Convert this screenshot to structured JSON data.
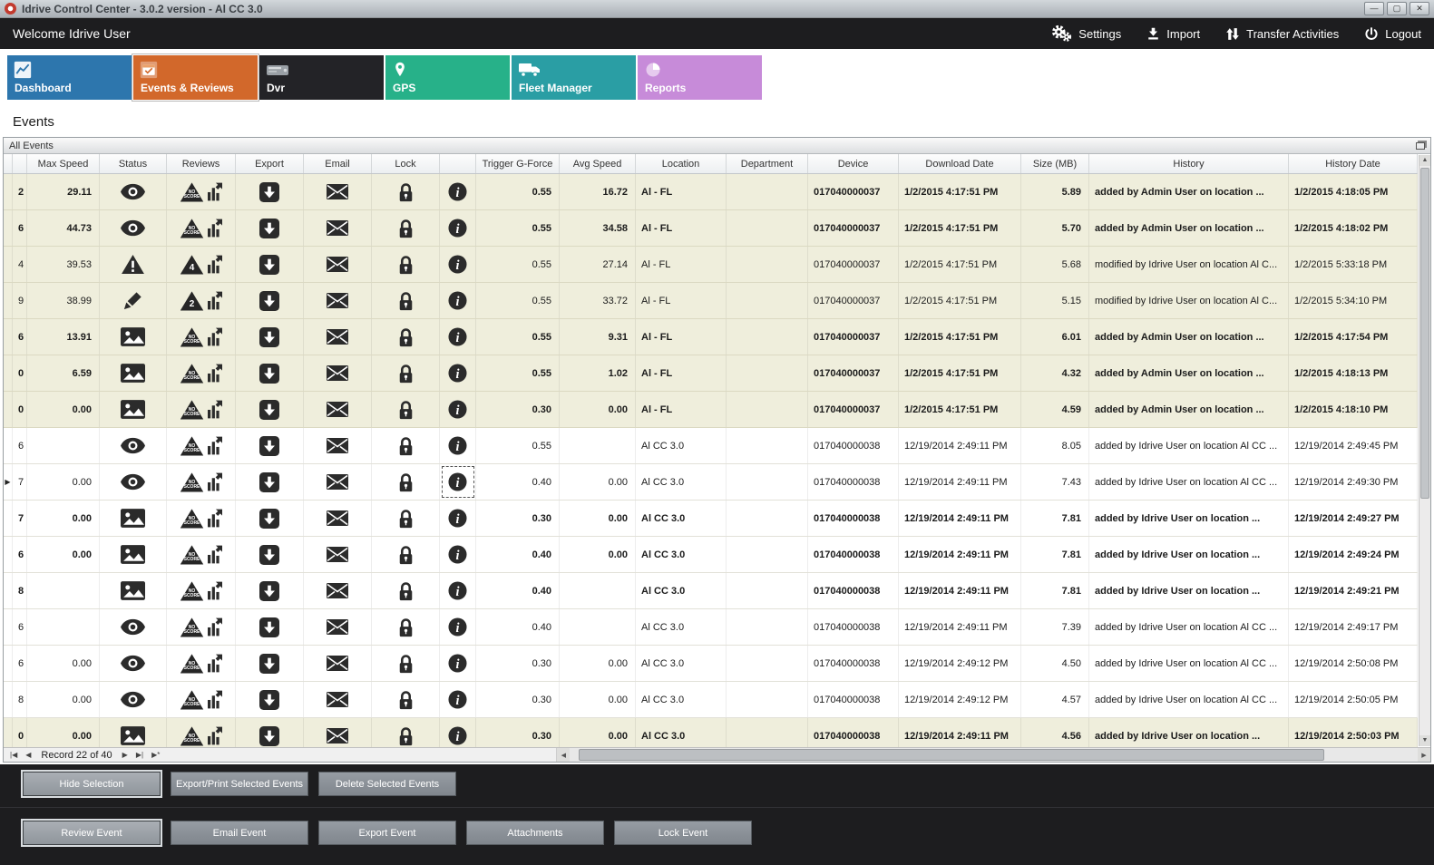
{
  "window": {
    "title": "Idrive Control Center - 3.0.2 version - Al CC 3.0",
    "controls": {
      "minimize": "—",
      "maximize": "▢",
      "close": "✕"
    }
  },
  "topbar": {
    "welcome": "Welcome Idrive User",
    "actions": [
      {
        "id": "settings",
        "label": "Settings"
      },
      {
        "id": "import",
        "label": "Import"
      },
      {
        "id": "transfer-activities",
        "label": "Transfer Activities"
      },
      {
        "id": "logout",
        "label": "Logout"
      }
    ]
  },
  "tabs": [
    {
      "label": "Dashboard",
      "color": "#2d76ad",
      "active": false
    },
    {
      "label": "Events & Reviews",
      "color": "#d2682b",
      "active": true
    },
    {
      "label": "Dvr",
      "color": "#232327",
      "active": false
    },
    {
      "label": "GPS",
      "color": "#27b189",
      "active": false
    },
    {
      "label": "Fleet Manager",
      "color": "#2a9ea4",
      "active": false
    },
    {
      "label": "Reports",
      "color": "#c78bd9",
      "active": false
    }
  ],
  "page": {
    "title": "Events"
  },
  "panel": {
    "title": "All Events"
  },
  "icons": {
    "first": "|◀",
    "prev": "◀",
    "next": "▶",
    "last": "▶|",
    "new": "▶*",
    "up": "▲",
    "down": "▼",
    "left": "◀",
    "right": "▶"
  },
  "table": {
    "headers": [
      "",
      "",
      "Max Speed",
      "Status",
      "Reviews",
      "Export",
      "Email",
      "Lock",
      "",
      "Trigger G-Force",
      "Avg Speed",
      "Location",
      "Department",
      "Device",
      "Download Date",
      "Size (MB)",
      "History",
      "History Date"
    ],
    "rows": [
      {
        "row_id": "2",
        "max_speed": "29.11",
        "status": "eye",
        "review": "NO SCORE",
        "trigger_g_force": "0.55",
        "avg_speed": "16.72",
        "location": "Al - FL",
        "department": "",
        "device": "017040000037",
        "download_date": "1/2/2015 4:17:51 PM",
        "size_mb": "5.89",
        "history": "added by Admin User on location ...",
        "history_date": "1/2/2015 4:18:05 PM",
        "bold": true,
        "highlight": true,
        "current": false
      },
      {
        "row_id": "6",
        "max_speed": "44.73",
        "status": "eye",
        "review": "NO SCORE",
        "trigger_g_force": "0.55",
        "avg_speed": "34.58",
        "location": "Al - FL",
        "department": "",
        "device": "017040000037",
        "download_date": "1/2/2015 4:17:51 PM",
        "size_mb": "5.70",
        "history": "added by Admin User on location ...",
        "history_date": "1/2/2015 4:18:02 PM",
        "bold": true,
        "highlight": true,
        "current": false
      },
      {
        "row_id": "4",
        "max_speed": "39.53",
        "status": "warning",
        "review": "4",
        "trigger_g_force": "0.55",
        "avg_speed": "27.14",
        "location": "Al - FL",
        "department": "",
        "device": "017040000037",
        "download_date": "1/2/2015 4:17:51 PM",
        "size_mb": "5.68",
        "history": "modified by Idrive User on location Al C...",
        "history_date": "1/2/2015 5:33:18 PM",
        "bold": false,
        "highlight": true,
        "current": false
      },
      {
        "row_id": "9",
        "max_speed": "38.99",
        "status": "pencil",
        "review": "2",
        "trigger_g_force": "0.55",
        "avg_speed": "33.72",
        "location": "Al - FL",
        "department": "",
        "device": "017040000037",
        "download_date": "1/2/2015 4:17:51 PM",
        "size_mb": "5.15",
        "history": "modified by Idrive User on location Al C...",
        "history_date": "1/2/2015 5:34:10 PM",
        "bold": false,
        "highlight": true,
        "current": false
      },
      {
        "row_id": "6",
        "max_speed": "13.91",
        "status": "image",
        "review": "NO SCORE",
        "trigger_g_force": "0.55",
        "avg_speed": "9.31",
        "location": "Al - FL",
        "department": "",
        "device": "017040000037",
        "download_date": "1/2/2015 4:17:51 PM",
        "size_mb": "6.01",
        "history": "added by Admin User on location ...",
        "history_date": "1/2/2015 4:17:54 PM",
        "bold": true,
        "highlight": true,
        "current": false
      },
      {
        "row_id": "0",
        "max_speed": "6.59",
        "status": "image",
        "review": "NO SCORE",
        "trigger_g_force": "0.55",
        "avg_speed": "1.02",
        "location": "Al - FL",
        "department": "",
        "device": "017040000037",
        "download_date": "1/2/2015 4:17:51 PM",
        "size_mb": "4.32",
        "history": "added by Admin User on location ...",
        "history_date": "1/2/2015 4:18:13 PM",
        "bold": true,
        "highlight": true,
        "current": false
      },
      {
        "row_id": "0",
        "max_speed": "0.00",
        "status": "image",
        "review": "NO SCORE",
        "trigger_g_force": "0.30",
        "avg_speed": "0.00",
        "location": "Al - FL",
        "department": "",
        "device": "017040000037",
        "download_date": "1/2/2015 4:17:51 PM",
        "size_mb": "4.59",
        "history": "added by Admin User on location ...",
        "history_date": "1/2/2015 4:18:10 PM",
        "bold": true,
        "highlight": true,
        "current": false
      },
      {
        "row_id": "6",
        "max_speed": "",
        "status": "eye",
        "review": "NO SCORE",
        "trigger_g_force": "0.55",
        "avg_speed": "",
        "location": "Al CC 3.0",
        "department": "",
        "device": "017040000038",
        "download_date": "12/19/2014 2:49:11 PM",
        "size_mb": "8.05",
        "history": "added by Idrive User on location Al CC ...",
        "history_date": "12/19/2014 2:49:45 PM",
        "bold": false,
        "highlight": false,
        "current": false
      },
      {
        "row_id": "7",
        "max_speed": "0.00",
        "status": "eye",
        "review": "NO SCORE",
        "trigger_g_force": "0.40",
        "avg_speed": "0.00",
        "location": "Al CC 3.0",
        "department": "",
        "device": "017040000038",
        "download_date": "12/19/2014 2:49:11 PM",
        "size_mb": "7.43",
        "history": "added by Idrive User on location Al CC ...",
        "history_date": "12/19/2014 2:49:30 PM",
        "bold": false,
        "highlight": false,
        "current": true
      },
      {
        "row_id": "7",
        "max_speed": "0.00",
        "status": "image",
        "review": "NO SCORE",
        "trigger_g_force": "0.30",
        "avg_speed": "0.00",
        "location": "Al CC 3.0",
        "department": "",
        "device": "017040000038",
        "download_date": "12/19/2014 2:49:11 PM",
        "size_mb": "7.81",
        "history": "added by Idrive User on location ...",
        "history_date": "12/19/2014 2:49:27 PM",
        "bold": true,
        "highlight": false,
        "current": false
      },
      {
        "row_id": "6",
        "max_speed": "0.00",
        "status": "image",
        "review": "NO SCORE",
        "trigger_g_force": "0.40",
        "avg_speed": "0.00",
        "location": "Al CC 3.0",
        "department": "",
        "device": "017040000038",
        "download_date": "12/19/2014 2:49:11 PM",
        "size_mb": "7.81",
        "history": "added by Idrive User on location ...",
        "history_date": "12/19/2014 2:49:24 PM",
        "bold": true,
        "highlight": false,
        "current": false
      },
      {
        "row_id": "8",
        "max_speed": "",
        "status": "image",
        "review": "NO SCORE",
        "trigger_g_force": "0.40",
        "avg_speed": "",
        "location": "Al CC 3.0",
        "department": "",
        "device": "017040000038",
        "download_date": "12/19/2014 2:49:11 PM",
        "size_mb": "7.81",
        "history": "added by Idrive User on location ...",
        "history_date": "12/19/2014 2:49:21 PM",
        "bold": true,
        "highlight": false,
        "current": false
      },
      {
        "row_id": "6",
        "max_speed": "",
        "status": "eye",
        "review": "NO SCORE",
        "trigger_g_force": "0.40",
        "avg_speed": "",
        "location": "Al CC 3.0",
        "department": "",
        "device": "017040000038",
        "download_date": "12/19/2014 2:49:11 PM",
        "size_mb": "7.39",
        "history": "added by Idrive User on location Al CC ...",
        "history_date": "12/19/2014 2:49:17 PM",
        "bold": false,
        "highlight": false,
        "current": false
      },
      {
        "row_id": "6",
        "max_speed": "0.00",
        "status": "eye",
        "review": "NO SCORE",
        "trigger_g_force": "0.30",
        "avg_speed": "0.00",
        "location": "Al CC 3.0",
        "department": "",
        "device": "017040000038",
        "download_date": "12/19/2014 2:49:12 PM",
        "size_mb": "4.50",
        "history": "added by Idrive User on location Al CC ...",
        "history_date": "12/19/2014 2:50:08 PM",
        "bold": false,
        "highlight": false,
        "current": false
      },
      {
        "row_id": "8",
        "max_speed": "0.00",
        "status": "eye",
        "review": "NO SCORE",
        "trigger_g_force": "0.30",
        "avg_speed": "0.00",
        "location": "Al CC 3.0",
        "department": "",
        "device": "017040000038",
        "download_date": "12/19/2014 2:49:12 PM",
        "size_mb": "4.57",
        "history": "added by Idrive User on location Al CC ...",
        "history_date": "12/19/2014 2:50:05 PM",
        "bold": false,
        "highlight": false,
        "current": false
      },
      {
        "row_id": "0",
        "max_speed": "0.00",
        "status": "image",
        "review": "NO SCORE",
        "trigger_g_force": "0.30",
        "avg_speed": "0.00",
        "location": "Al CC 3.0",
        "department": "",
        "device": "017040000038",
        "download_date": "12/19/2014 2:49:11 PM",
        "size_mb": "4.56",
        "history": "added by Idrive User on location ...",
        "history_date": "12/19/2014 2:50:03 PM",
        "bold": true,
        "highlight": true,
        "current": false
      }
    ]
  },
  "pager": {
    "label": "Record 22 of 40"
  },
  "footer": {
    "selection_buttons": [
      "Hide Selection",
      "Export/Print Selected Events",
      "Delete Selected  Events"
    ],
    "event_buttons": [
      "Review Event",
      "Email Event",
      "Export Event",
      "Attachments",
      "Lock Event"
    ]
  }
}
